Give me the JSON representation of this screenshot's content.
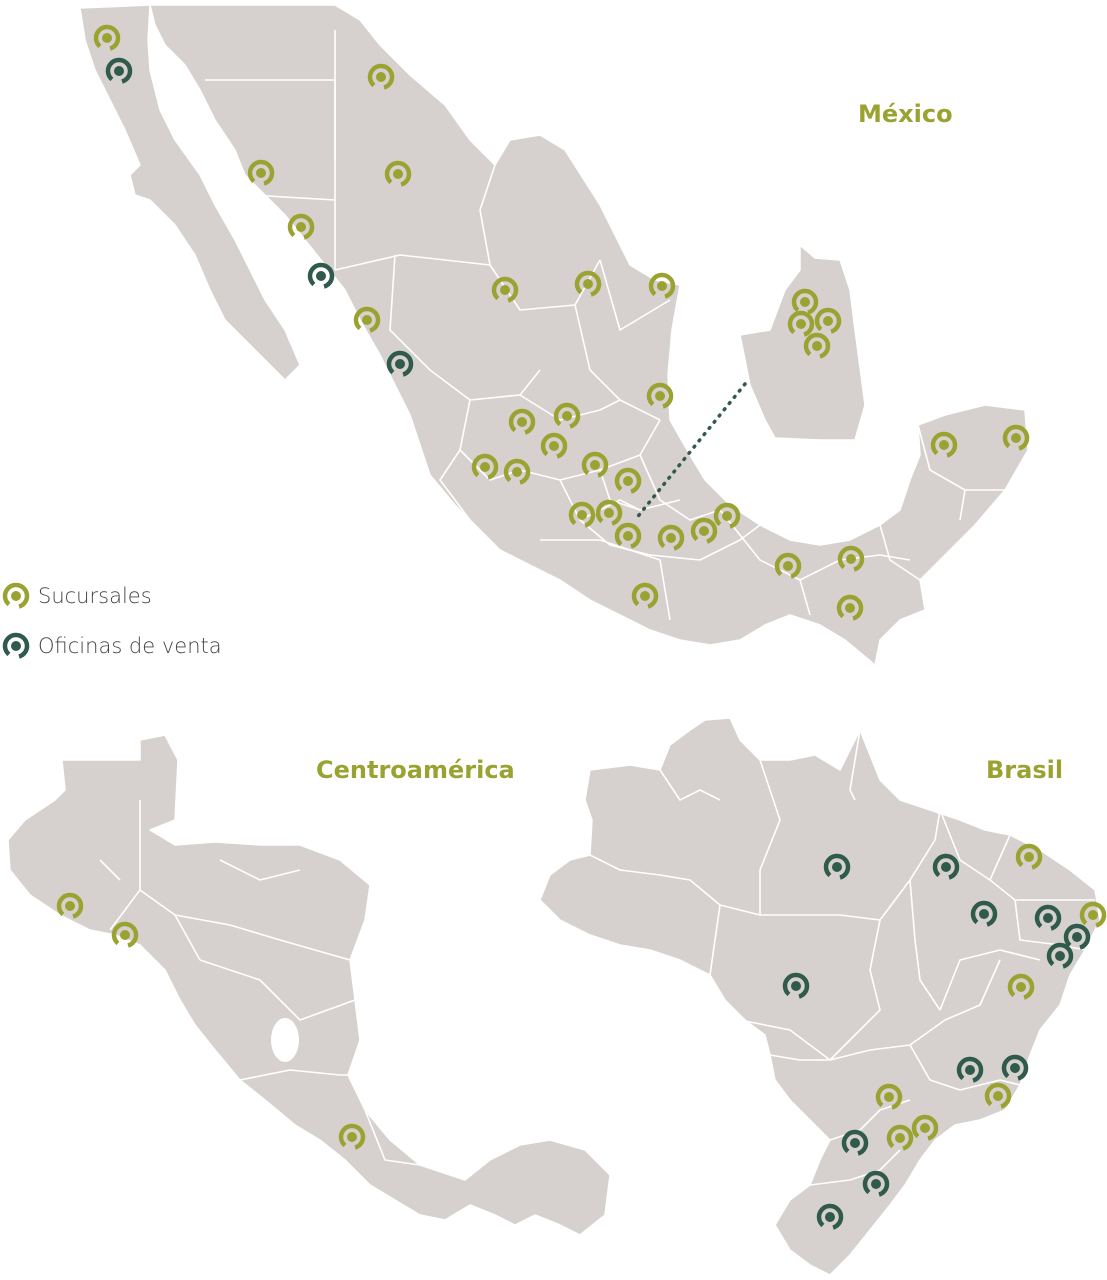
{
  "colors": {
    "land": "#d6d1ce",
    "border": "#ffffff",
    "sucursal": "#9aa332",
    "oficina": "#2f5a4c",
    "title": "#9aa332"
  },
  "titles": {
    "mexico": "México",
    "centroamerica": "Centroamérica",
    "brasil": "Brasil"
  },
  "legend": {
    "sucursales": "Sucursales",
    "oficinas": "Oficinas de venta"
  },
  "icons": {
    "sucursal": "green-ring-marker-icon",
    "oficina": "dark-ring-marker-icon"
  }
}
